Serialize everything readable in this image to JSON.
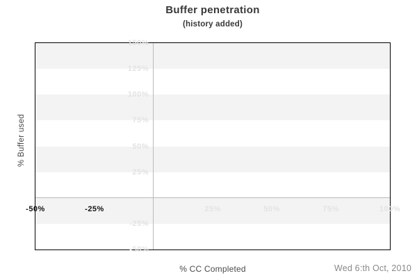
{
  "title": "Buffer penetration",
  "subtitle": "(history added)",
  "footer": {
    "date": "Wed 6:th Oct, 2010"
  },
  "colors": {
    "band": "#f3f3f3",
    "zero_axis_line": "#b9b9b9",
    "tick_light": "#e3e3e3",
    "tick_dark": "#141414",
    "plot_border": "#000000",
    "title_text": "#383838",
    "axis_title_text": "#4a4a4a",
    "date_text": "#898989"
  },
  "chart_data": {
    "type": "line",
    "title": "Buffer penetration",
    "subtitle": "(history added)",
    "xlabel": "% CC Completed",
    "ylabel": "% Buffer used",
    "xlim": [
      -50,
      100
    ],
    "ylim": [
      -50,
      150
    ],
    "series": [],
    "grid": "alternating horizontal bands every 25%, zero axis lines at x=0 and y=0",
    "grid_bands_y": [
      [
        150,
        125
      ],
      [
        100,
        75
      ],
      [
        50,
        25
      ],
      [
        0,
        -25
      ]
    ],
    "x_ticks": [
      {
        "value": -50,
        "label": "-50%",
        "emphasis": true
      },
      {
        "value": -25,
        "label": "-25%",
        "emphasis": true
      },
      {
        "value": 25,
        "label": "25%",
        "emphasis": false
      },
      {
        "value": 50,
        "label": "50%",
        "emphasis": false
      },
      {
        "value": 75,
        "label": "75%",
        "emphasis": false
      },
      {
        "value": 100,
        "label": "100%",
        "emphasis": false
      }
    ],
    "y_ticks": [
      {
        "value": 150,
        "label": "150%"
      },
      {
        "value": 125,
        "label": "125%"
      },
      {
        "value": 100,
        "label": "100%"
      },
      {
        "value": 75,
        "label": "75%"
      },
      {
        "value": 50,
        "label": "50%"
      },
      {
        "value": 25,
        "label": "25%"
      },
      {
        "value": -25,
        "label": "-25%"
      },
      {
        "value": -50,
        "label": "-50%"
      }
    ]
  }
}
